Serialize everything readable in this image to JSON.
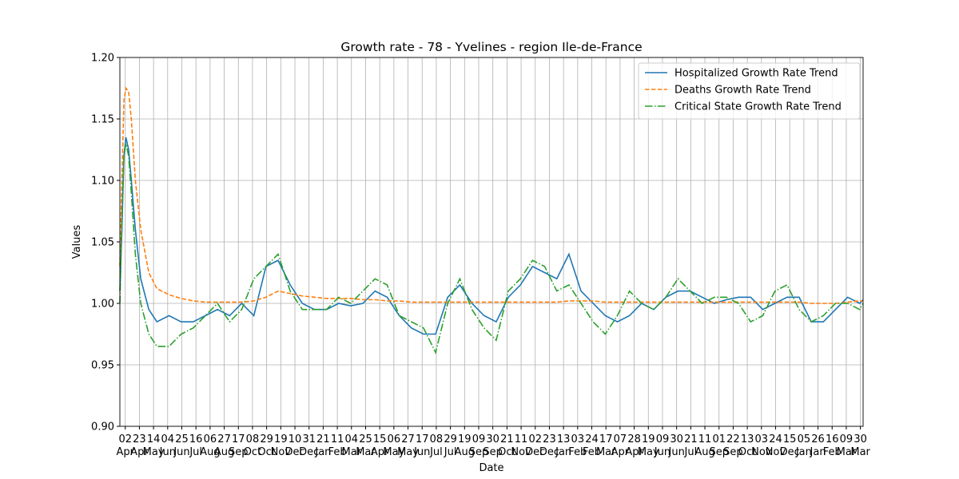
{
  "chart_data": {
    "type": "line",
    "title": "Growth rate - 78 - Yvelines - region Ile-de-France",
    "xlabel": "Date",
    "ylabel": "Values",
    "x": [
      7,
      10,
      13,
      16,
      20,
      24,
      30,
      38,
      50,
      62,
      80,
      98,
      116,
      134,
      152,
      170,
      188,
      206,
      224,
      242,
      260,
      278,
      296,
      314,
      332,
      350,
      368,
      386,
      404,
      422,
      440,
      458,
      476,
      494,
      512,
      530,
      548,
      566,
      584,
      602,
      620,
      638,
      656,
      674,
      692,
      710,
      728,
      746,
      764,
      782,
      800,
      818,
      836,
      854,
      872,
      890,
      908,
      926,
      944,
      962,
      980,
      998,
      1016,
      1034,
      1052,
      1070,
      1088,
      1106,
      1111
    ],
    "series": [
      {
        "name": "Hospitalized Growth Rate Trend",
        "color": "#1f77b4",
        "dash": "solid",
        "values": [
          1.01,
          1.06,
          1.12,
          1.135,
          1.125,
          1.1,
          1.06,
          1.02,
          0.995,
          0.985,
          0.99,
          0.985,
          0.985,
          0.99,
          0.995,
          0.99,
          1.0,
          0.99,
          1.03,
          1.035,
          1.015,
          1.0,
          0.995,
          0.995,
          1.0,
          0.998,
          1.0,
          1.01,
          1.005,
          0.99,
          0.98,
          0.975,
          0.975,
          1.005,
          1.015,
          1.0,
          0.99,
          0.985,
          1.005,
          1.015,
          1.03,
          1.025,
          1.02,
          1.04,
          1.01,
          1.0,
          0.99,
          0.985,
          0.99,
          1.0,
          0.995,
          1.005,
          1.01,
          1.01,
          1.005,
          1.0,
          1.003,
          1.005,
          1.005,
          0.995,
          1.0,
          1.005,
          1.005,
          0.985,
          0.985,
          0.995,
          1.005,
          1.0,
          1.003
        ]
      },
      {
        "name": "Deaths Growth Rate Trend",
        "color": "#ff7f0e",
        "dash": "dashed",
        "values": [
          1.03,
          1.1,
          1.165,
          1.175,
          1.172,
          1.15,
          1.1,
          1.06,
          1.025,
          1.012,
          1.007,
          1.004,
          1.002,
          1.001,
          1.001,
          1.001,
          1.001,
          1.002,
          1.005,
          1.01,
          1.008,
          1.006,
          1.005,
          1.004,
          1.004,
          1.004,
          1.003,
          1.003,
          1.002,
          1.002,
          1.001,
          1.001,
          1.001,
          1.001,
          1.001,
          1.001,
          1.001,
          1.001,
          1.001,
          1.001,
          1.001,
          1.001,
          1.001,
          1.002,
          1.002,
          1.002,
          1.001,
          1.001,
          1.001,
          1.001,
          1.001,
          1.001,
          1.001,
          1.001,
          1.001,
          1.001,
          1.001,
          1.001,
          1.001,
          1.001,
          1.001,
          1.001,
          1.001,
          1.0,
          1.0,
          1.0,
          1.001,
          1.002,
          1.002
        ]
      },
      {
        "name": "Critical State Growth Rate Trend",
        "color": "#2ca02c",
        "dash": "dashdot",
        "values": [
          1.0,
          1.07,
          1.12,
          1.13,
          1.12,
          1.09,
          1.04,
          1.0,
          0.975,
          0.965,
          0.965,
          0.975,
          0.98,
          0.99,
          1.0,
          0.985,
          0.995,
          1.02,
          1.03,
          1.04,
          1.01,
          0.995,
          0.995,
          0.995,
          1.005,
          1.0,
          1.01,
          1.02,
          1.015,
          0.99,
          0.985,
          0.98,
          0.96,
          1.0,
          1.02,
          0.995,
          0.98,
          0.97,
          1.01,
          1.02,
          1.035,
          1.03,
          1.01,
          1.015,
          1.0,
          0.985,
          0.975,
          0.99,
          1.01,
          1.0,
          0.995,
          1.005,
          1.02,
          1.01,
          1.0,
          1.005,
          1.005,
          1.0,
          0.985,
          0.99,
          1.01,
          1.015,
          0.995,
          0.985,
          0.99,
          1.0,
          1.0,
          0.995,
          1.0
        ]
      }
    ],
    "xlim": [
      7,
      1111
    ],
    "xticks": [
      {
        "value": 15,
        "label": "02\nApr"
      },
      {
        "value": 36,
        "label": "23\nApr"
      },
      {
        "value": 57,
        "label": "14\nMay"
      },
      {
        "value": 78,
        "label": "04\nJun"
      },
      {
        "value": 99,
        "label": "25\nJun"
      },
      {
        "value": 120,
        "label": "16\nJul"
      },
      {
        "value": 141,
        "label": "06\nAug"
      },
      {
        "value": 162,
        "label": "27\nAug"
      },
      {
        "value": 183,
        "label": "17\nSep"
      },
      {
        "value": 204,
        "label": "08\nOct"
      },
      {
        "value": 225,
        "label": "29\nOct"
      },
      {
        "value": 246,
        "label": "19\nNov"
      },
      {
        "value": 267,
        "label": "10\nDec"
      },
      {
        "value": 288,
        "label": "31\nDec"
      },
      {
        "value": 309,
        "label": "21\nJan"
      },
      {
        "value": 330,
        "label": "11\nFeb"
      },
      {
        "value": 351,
        "label": "04\nMar"
      },
      {
        "value": 372,
        "label": "25\nMar"
      },
      {
        "value": 393,
        "label": "15\nApr"
      },
      {
        "value": 414,
        "label": "06\nMay"
      },
      {
        "value": 435,
        "label": "27\nMay"
      },
      {
        "value": 456,
        "label": "17\nJun"
      },
      {
        "value": 477,
        "label": "08\nJul"
      },
      {
        "value": 498,
        "label": "29\nJul"
      },
      {
        "value": 519,
        "label": "19\nAug"
      },
      {
        "value": 540,
        "label": "09\nSep"
      },
      {
        "value": 561,
        "label": "30\nSep"
      },
      {
        "value": 582,
        "label": "21\nOct"
      },
      {
        "value": 603,
        "label": "11\nNov"
      },
      {
        "value": 624,
        "label": "02\nDec"
      },
      {
        "value": 645,
        "label": "23\nDec"
      },
      {
        "value": 666,
        "label": "13\nJan"
      },
      {
        "value": 687,
        "label": "03\nFeb"
      },
      {
        "value": 708,
        "label": "24\nFeb"
      },
      {
        "value": 729,
        "label": "17\nMar"
      },
      {
        "value": 750,
        "label": "07\nApr"
      },
      {
        "value": 771,
        "label": "28\nApr"
      },
      {
        "value": 792,
        "label": "19\nMay"
      },
      {
        "value": 813,
        "label": "09\nJun"
      },
      {
        "value": 834,
        "label": "30\nJun"
      },
      {
        "value": 855,
        "label": "21\nJul"
      },
      {
        "value": 876,
        "label": "11\nAug"
      },
      {
        "value": 897,
        "label": "01\nSep"
      },
      {
        "value": 918,
        "label": "22\nSep"
      },
      {
        "value": 939,
        "label": "13\nOct"
      },
      {
        "value": 960,
        "label": "03\nNov"
      },
      {
        "value": 981,
        "label": "24\nNov"
      },
      {
        "value": 1002,
        "label": "15\nDec"
      },
      {
        "value": 1023,
        "label": "05\nJan"
      },
      {
        "value": 1044,
        "label": "26\nJan"
      },
      {
        "value": 1065,
        "label": "16\nFeb"
      },
      {
        "value": 1086,
        "label": "09\nMar"
      },
      {
        "value": 1107,
        "label": "30\nMar"
      }
    ],
    "ylim": [
      0.9,
      1.2
    ],
    "yticks": [
      {
        "value": 0.9,
        "label": "0.90"
      },
      {
        "value": 0.95,
        "label": "0.95"
      },
      {
        "value": 1.0,
        "label": "1.00"
      },
      {
        "value": 1.05,
        "label": "1.05"
      },
      {
        "value": 1.1,
        "label": "1.10"
      },
      {
        "value": 1.15,
        "label": "1.15"
      },
      {
        "value": 1.2,
        "label": "1.20"
      }
    ],
    "grid": true,
    "legend": "upper right"
  }
}
